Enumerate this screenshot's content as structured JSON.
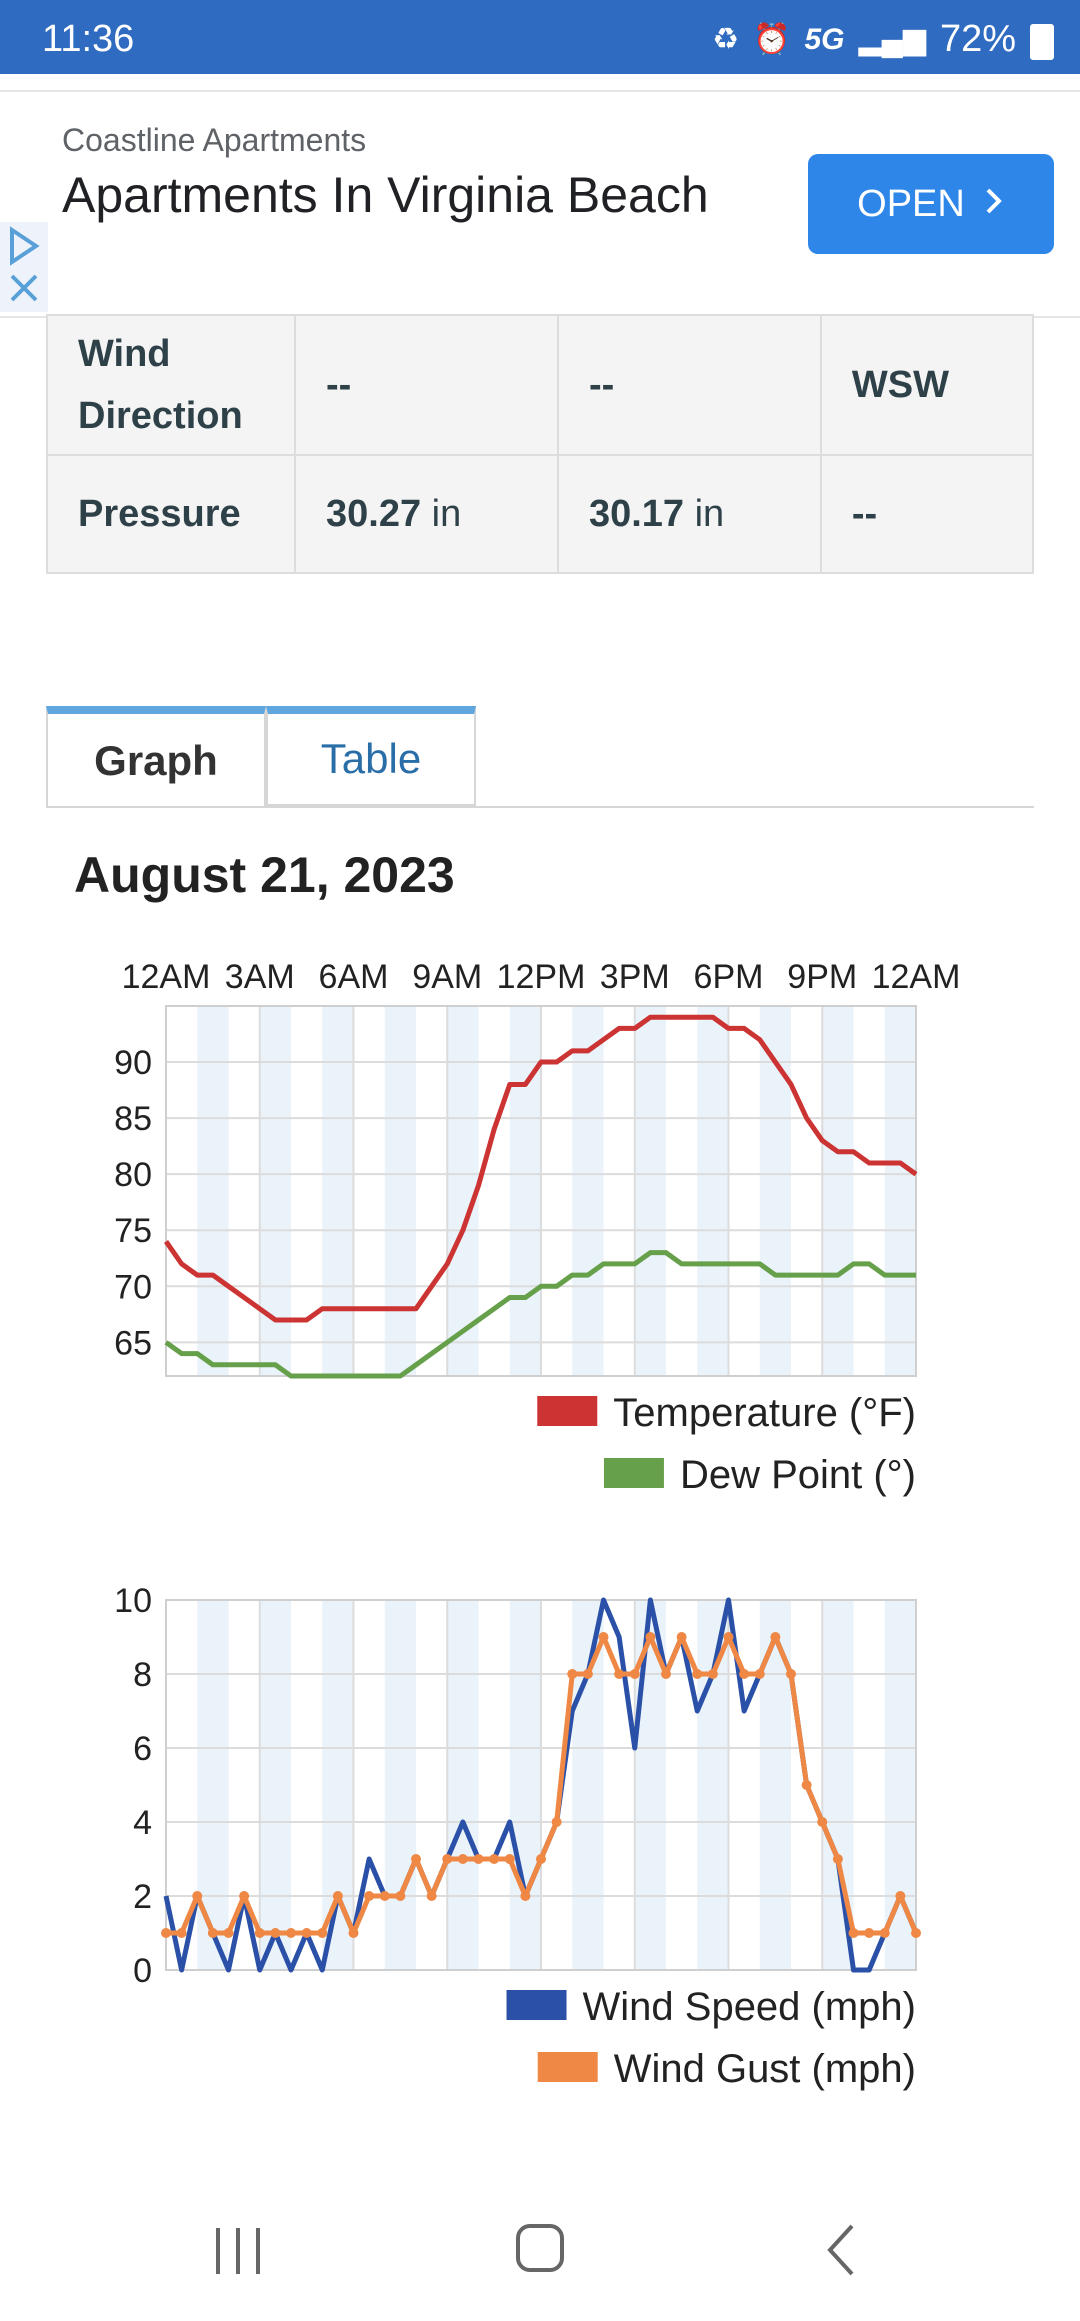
{
  "status_bar": {
    "time": "11:36",
    "network": "5G",
    "battery": "72%"
  },
  "ad": {
    "brand": "Coastline Apartments",
    "headline": "Apartments In Virginia Beach",
    "button": "OPEN"
  },
  "table": {
    "rows": [
      {
        "label": "Wind Direction",
        "c1": "--",
        "c2": "--",
        "c3": "WSW"
      },
      {
        "label": "Pressure",
        "c1_num": "30.27",
        "c1_unit": " in",
        "c2_num": "30.17",
        "c2_unit": " in",
        "c3": "--"
      }
    ]
  },
  "tabs": {
    "graph": "Graph",
    "table": "Table"
  },
  "date": "August 21, 2023",
  "colors": {
    "temperature": "#cc3333",
    "dew_point": "#66a04a",
    "wind_speed": "#2a50a8",
    "wind_gust": "#ee8844"
  },
  "chart_data": [
    {
      "type": "line",
      "x_tick_labels": [
        "12AM",
        "3AM",
        "6AM",
        "9AM",
        "12PM",
        "3PM",
        "6PM",
        "9PM",
        "12AM"
      ],
      "xlim": [
        0,
        24
      ],
      "ylim": [
        62,
        95
      ],
      "y_ticks": [
        65,
        70,
        75,
        80,
        85,
        90
      ],
      "legend_position": "bottom-right",
      "series": [
        {
          "name": "Temperature (°F)",
          "x": [
            0,
            0.5,
            1,
            1.5,
            2,
            2.5,
            3,
            3.5,
            4,
            4.5,
            5,
            5.5,
            6,
            6.5,
            7,
            7.5,
            8,
            8.5,
            9,
            9.5,
            10,
            10.5,
            11,
            11.5,
            12,
            12.5,
            13,
            13.5,
            14,
            14.5,
            15,
            15.5,
            16,
            16.5,
            17,
            17.5,
            18,
            18.5,
            19,
            19.5,
            20,
            20.5,
            21,
            21.5,
            22,
            22.5,
            23,
            23.5,
            24
          ],
          "y": [
            74,
            72,
            71,
            71,
            70,
            69,
            68,
            67,
            67,
            67,
            68,
            68,
            68,
            68,
            68,
            68,
            68,
            70,
            72,
            75,
            79,
            84,
            88,
            88,
            90,
            90,
            91,
            91,
            92,
            93,
            93,
            94,
            94,
            94,
            94,
            94,
            93,
            93,
            92,
            90,
            88,
            85,
            83,
            82,
            82,
            81,
            81,
            81,
            80
          ]
        },
        {
          "name": "Dew Point (°)",
          "x": [
            0,
            0.5,
            1,
            1.5,
            2,
            2.5,
            3,
            3.5,
            4,
            4.5,
            5,
            5.5,
            6,
            6.5,
            7,
            7.5,
            8,
            8.5,
            9,
            9.5,
            10,
            10.5,
            11,
            11.5,
            12,
            12.5,
            13,
            13.5,
            14,
            14.5,
            15,
            15.5,
            16,
            16.5,
            17,
            17.5,
            18,
            18.5,
            19,
            19.5,
            20,
            20.5,
            21,
            21.5,
            22,
            22.5,
            23,
            23.5,
            24
          ],
          "y": [
            65,
            64,
            64,
            63,
            63,
            63,
            63,
            63,
            62,
            62,
            62,
            62,
            62,
            62,
            62,
            62,
            63,
            64,
            65,
            66,
            67,
            68,
            69,
            69,
            70,
            70,
            71,
            71,
            72,
            72,
            72,
            73,
            73,
            72,
            72,
            72,
            72,
            72,
            72,
            71,
            71,
            71,
            71,
            71,
            72,
            72,
            71,
            71,
            71
          ]
        }
      ]
    },
    {
      "type": "line",
      "x_tick_labels": [],
      "xlim": [
        0,
        24
      ],
      "ylim": [
        0,
        10
      ],
      "y_ticks": [
        0,
        2,
        4,
        6,
        8,
        10
      ],
      "legend_position": "bottom-right",
      "series": [
        {
          "name": "Wind Speed (mph)",
          "x": [
            0,
            0.5,
            1,
            1.5,
            2,
            2.5,
            3,
            3.5,
            4,
            4.5,
            5,
            5.5,
            6,
            6.5,
            7,
            7.5,
            8,
            8.5,
            9,
            9.5,
            10,
            10.5,
            11,
            11.5,
            12,
            12.5,
            13,
            13.5,
            14,
            14.5,
            15,
            15.5,
            16,
            16.5,
            17,
            17.5,
            18,
            18.5,
            19,
            19.5,
            20,
            20.5,
            21,
            21.5,
            22,
            22.5,
            23,
            23.5,
            24
          ],
          "y": [
            2,
            0,
            2,
            1,
            0,
            2,
            0,
            1,
            0,
            1,
            0,
            2,
            1,
            3,
            2,
            2,
            3,
            2,
            3,
            4,
            3,
            3,
            4,
            2,
            3,
            4,
            7,
            8,
            10,
            9,
            6,
            10,
            8,
            9,
            7,
            8,
            10,
            7,
            8,
            9,
            8,
            5,
            4,
            3,
            0,
            0,
            1,
            2,
            1
          ]
        },
        {
          "name": "Wind Gust (mph)",
          "x": [
            0,
            0.5,
            1,
            1.5,
            2,
            2.5,
            3,
            3.5,
            4,
            4.5,
            5,
            5.5,
            6,
            6.5,
            7,
            7.5,
            8,
            8.5,
            9,
            9.5,
            10,
            10.5,
            11,
            11.5,
            12,
            12.5,
            13,
            13.5,
            14,
            14.5,
            15,
            15.5,
            16,
            16.5,
            17,
            17.5,
            18,
            18.5,
            19,
            19.5,
            20,
            20.5,
            21,
            21.5,
            22,
            22.5,
            23,
            23.5,
            24
          ],
          "y": [
            1,
            1,
            2,
            1,
            1,
            2,
            1,
            1,
            1,
            1,
            1,
            2,
            1,
            2,
            2,
            2,
            3,
            2,
            3,
            3,
            3,
            3,
            3,
            2,
            3,
            4,
            8,
            8,
            9,
            8,
            8,
            9,
            8,
            9,
            8,
            8,
            9,
            8,
            8,
            9,
            8,
            5,
            4,
            3,
            1,
            1,
            1,
            2,
            1
          ]
        }
      ]
    }
  ]
}
